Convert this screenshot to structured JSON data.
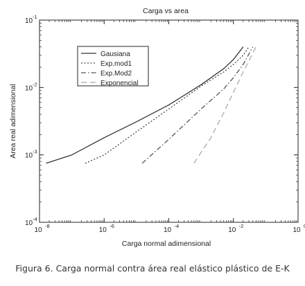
{
  "chart_data": {
    "type": "line",
    "title": "Carga vs area",
    "xlabel": "Carga normal adimensional",
    "ylabel": "Area real adimensional",
    "x_scale": "log",
    "y_scale": "log",
    "xlim": [
      1e-08,
      1
    ],
    "ylim": [
      0.0001,
      0.1
    ],
    "x_ticks": [
      {
        "value": 1e-08,
        "base": "10",
        "exp": "-8"
      },
      {
        "value": 1e-06,
        "base": "10",
        "exp": "-6"
      },
      {
        "value": 0.0001,
        "base": "10",
        "exp": "-4"
      },
      {
        "value": 0.01,
        "base": "10",
        "exp": "-2"
      },
      {
        "value": 1,
        "base": "10",
        "exp": "0"
      }
    ],
    "y_ticks": [
      {
        "value": 0.0001,
        "base": "10",
        "exp": "-4"
      },
      {
        "value": 0.001,
        "base": "10",
        "exp": "-3"
      },
      {
        "value": 0.01,
        "base": "10",
        "exp": "-2"
      },
      {
        "value": 0.1,
        "base": "10",
        "exp": "-1"
      }
    ],
    "grid": false,
    "legend_position": "top-left",
    "series": [
      {
        "name": "Gausiana",
        "style": "solid",
        "color": "#333333",
        "x": [
          1.6e-08,
          1e-07,
          1e-06,
          1e-05,
          0.0001,
          0.001,
          0.005,
          0.01,
          0.02
        ],
        "y": [
          0.00075,
          0.001,
          0.0018,
          0.0031,
          0.0055,
          0.011,
          0.019,
          0.026,
          0.04
        ]
      },
      {
        "name": "Exp.mod1",
        "style": "dotted",
        "color": "#444444",
        "x": [
          2.6e-07,
          1e-06,
          1e-05,
          0.0001,
          0.001,
          0.005,
          0.01,
          0.02,
          0.03
        ],
        "y": [
          0.00075,
          0.001,
          0.0022,
          0.0048,
          0.0105,
          0.017,
          0.022,
          0.03,
          0.04
        ]
      },
      {
        "name": "Exp.Mod2",
        "style": "dashdot",
        "color": "#555555",
        "x": [
          1.5e-05,
          0.0001,
          0.001,
          0.005,
          0.01,
          0.02,
          0.04
        ],
        "y": [
          0.00075,
          0.0017,
          0.0048,
          0.0095,
          0.014,
          0.022,
          0.04
        ]
      },
      {
        "name": "Exponencial",
        "style": "dashed",
        "color": "#aaaaaa",
        "x": [
          0.0006,
          0.002,
          0.005,
          0.01,
          0.02,
          0.05
        ],
        "y": [
          0.00075,
          0.0018,
          0.0042,
          0.0085,
          0.017,
          0.04
        ]
      }
    ]
  },
  "caption": "Figura 6. Carga normal contra área real elástico plástico de E-K"
}
